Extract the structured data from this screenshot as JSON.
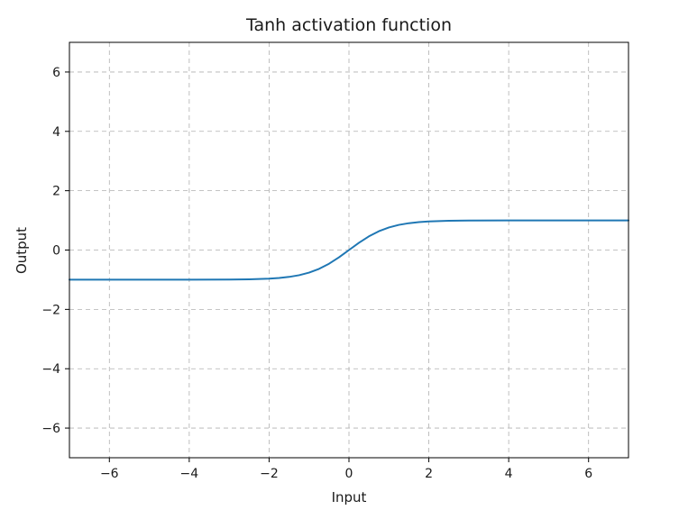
{
  "chart_data": {
    "type": "line",
    "title": "Tanh activation function",
    "xlabel": "Input",
    "ylabel": "Output",
    "xlim": [
      -7,
      7
    ],
    "ylim": [
      -7,
      7
    ],
    "xticks": [
      -6,
      -4,
      -2,
      0,
      2,
      4,
      6
    ],
    "yticks": [
      -6,
      -4,
      -2,
      0,
      2,
      4,
      6
    ],
    "grid": true,
    "grid_style": "dashed",
    "series": [
      {
        "color": "#1f77b4",
        "x": [
          -7,
          -6,
          -5,
          -4,
          -3,
          -2.5,
          -2,
          -1.75,
          -1.5,
          -1.25,
          -1,
          -0.75,
          -0.5,
          -0.25,
          0,
          0.25,
          0.5,
          0.75,
          1,
          1.25,
          1.5,
          1.75,
          2,
          2.5,
          3,
          4,
          5,
          6,
          7
        ],
        "y": [
          -1,
          -1,
          -0.9999,
          -0.9993,
          -0.9951,
          -0.9866,
          -0.964,
          -0.9414,
          -0.9051,
          -0.8483,
          -0.7616,
          -0.6351,
          -0.4621,
          -0.2449,
          0,
          0.2449,
          0.4621,
          0.6351,
          0.7616,
          0.8483,
          0.9051,
          0.9414,
          0.964,
          0.9866,
          0.9951,
          0.9993,
          0.9999,
          1,
          1
        ]
      }
    ]
  }
}
